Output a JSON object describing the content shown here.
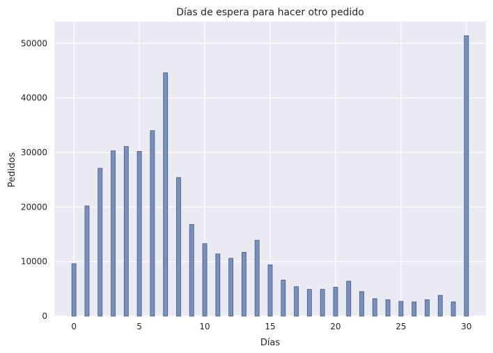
{
  "chart_data": {
    "type": "bar",
    "title": "Días de espera para hacer otro pedido",
    "xlabel": "Días",
    "ylabel": "Pedidos",
    "xlim": [
      -1.5,
      31.5
    ],
    "ylim": [
      0,
      54000
    ],
    "xticks": [
      0,
      5,
      10,
      15,
      20,
      25,
      30
    ],
    "yticks": [
      0,
      10000,
      20000,
      30000,
      40000,
      50000
    ],
    "grid": true,
    "colors": {
      "bar_fill": "#7890bf",
      "bar_edge": "#4a5670",
      "background": "#eaeaf2",
      "grid": "#ffffff"
    },
    "x": [
      0,
      1,
      2,
      3,
      4,
      5,
      6,
      7,
      8,
      9,
      10,
      11,
      12,
      13,
      14,
      15,
      16,
      17,
      18,
      19,
      20,
      21,
      22,
      23,
      24,
      25,
      26,
      27,
      28,
      29,
      30
    ],
    "values": [
      9600,
      20200,
      27100,
      30300,
      31100,
      30200,
      34000,
      44600,
      25400,
      16800,
      13300,
      11400,
      10600,
      11700,
      13900,
      9400,
      6600,
      5400,
      4900,
      4900,
      5300,
      6400,
      4500,
      3200,
      3000,
      2700,
      2600,
      3000,
      3800,
      2600,
      51400
    ]
  }
}
